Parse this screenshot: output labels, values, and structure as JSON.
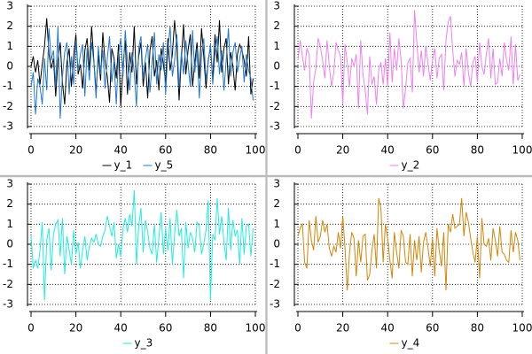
{
  "chart_data": [
    {
      "type": "line",
      "x": [
        0,
        1,
        2,
        3,
        4,
        5,
        6,
        7,
        8,
        9,
        10,
        11,
        12,
        13,
        14,
        15,
        16,
        17,
        18,
        19,
        20,
        21,
        22,
        23,
        24,
        25,
        26,
        27,
        28,
        29,
        30,
        31,
        32,
        33,
        34,
        35,
        36,
        37,
        38,
        39,
        40,
        41,
        42,
        43,
        44,
        45,
        46,
        47,
        48,
        49,
        50,
        51,
        52,
        53,
        54,
        55,
        56,
        57,
        58,
        59,
        60,
        61,
        62,
        63,
        64,
        65,
        66,
        67,
        68,
        69,
        70,
        71,
        72,
        73,
        74,
        75,
        76,
        77,
        78,
        79,
        80,
        81,
        82,
        83,
        84,
        85,
        86,
        87,
        88,
        89,
        90,
        91,
        92,
        93,
        94,
        95,
        96,
        97,
        98,
        99
      ],
      "xlim": [
        0,
        100
      ],
      "xticks": [
        0,
        20,
        40,
        60,
        80,
        100
      ],
      "ylim": [
        -3,
        3
      ],
      "yticks": [
        -3,
        -2,
        -1,
        0,
        1,
        2,
        3
      ],
      "grid": true,
      "series": [
        {
          "name": "y_1",
          "color": "#000000",
          "values": [
            0.0,
            0.5,
            -0.3,
            0.3,
            -0.9,
            0.1,
            1.0,
            2.4,
            0.6,
            -0.1,
            0.4,
            -1.5,
            0.3,
            1.2,
            -0.8,
            -1.9,
            0.2,
            0.9,
            -1.0,
            0.5,
            1.6,
            -0.4,
            0.1,
            -1.1,
            0.8,
            1.4,
            -0.2,
            2.0,
            0.3,
            -1.3,
            0.6,
            -0.7,
            1.7,
            0.2,
            -0.5,
            -1.8,
            0.9,
            0.4,
            -0.6,
            1.1,
            -2.0,
            0.0,
            1.3,
            -1.4,
            0.7,
            -0.3,
            2.0,
            -0.9,
            0.5,
            1.2,
            -1.0,
            0.2,
            -1.6,
            0.8,
            1.5,
            -0.5,
            0.3,
            -1.2,
            0.9,
            0.1,
            -0.8,
            1.4,
            -0.2,
            0.6,
            2.3,
            1.0,
            -1.7,
            0.4,
            2.1,
            -0.4,
            0.8,
            1.6,
            -1.0,
            0.2,
            1.2,
            -0.6,
            1.9,
            0.5,
            -1.1,
            0.3,
            1.0,
            -0.7,
            1.6,
            0.2,
            2.3,
            -0.3,
            0.9,
            1.4,
            -0.9,
            0.7,
            0.0,
            -1.2,
            0.6,
            1.1,
            0.8,
            0.3,
            -0.5,
            1.5,
            -1.4,
            -0.6
          ]
        },
        {
          "name": "y_5",
          "color": "#1f78d1",
          "values": [
            -1.0,
            -0.3,
            -2.4,
            -0.6,
            -1.0,
            -1.9,
            0.4,
            -1.2,
            1.9,
            0.3,
            0.8,
            -1.0,
            2.0,
            -2.6,
            -0.5,
            0.7,
            1.2,
            -1.4,
            0.5,
            -0.9,
            1.3,
            -0.2,
            0.6,
            1.1,
            -1.5,
            0.9,
            -0.7,
            1.2,
            0.2,
            -1.6,
            1.0,
            -0.4,
            0.8,
            -1.1,
            0.4,
            1.5,
            -0.8,
            0.3,
            -1.9,
            0.6,
            1.4,
            -0.5,
            1.8,
            0.2,
            -1.2,
            0.7,
            -0.3,
            -2.0,
            0.9,
            1.5,
            -0.6,
            0.4,
            1.1,
            -1.3,
            0.2,
            1.7,
            -0.9,
            0.6,
            -0.2,
            1.2,
            -1.4,
            0.8,
            2.0,
            -0.5,
            0.3,
            1.6,
            -1.1,
            0.7,
            -0.4,
            1.3,
            0.1,
            -1.0,
            1.8,
            -0.3,
            0.9,
            -1.6,
            0.5,
            1.4,
            -0.7,
            0.2,
            1.1,
            -0.9,
            0.6,
            1.5,
            -0.4,
            0.8,
            -1.2,
            0.3,
            1.9,
            -0.5,
            0.7,
            1.2,
            -0.3,
            0.4,
            1.0,
            -0.8,
            0.6,
            -0.2,
            -0.6,
            -1.7
          ]
        }
      ]
    },
    {
      "type": "line",
      "x": [
        0,
        1,
        2,
        3,
        4,
        5,
        6,
        7,
        8,
        9,
        10,
        11,
        12,
        13,
        14,
        15,
        16,
        17,
        18,
        19,
        20,
        21,
        22,
        23,
        24,
        25,
        26,
        27,
        28,
        29,
        30,
        31,
        32,
        33,
        34,
        35,
        36,
        37,
        38,
        39,
        40,
        41,
        42,
        43,
        44,
        45,
        46,
        47,
        48,
        49,
        50,
        51,
        52,
        53,
        54,
        55,
        56,
        57,
        58,
        59,
        60,
        61,
        62,
        63,
        64,
        65,
        66,
        67,
        68,
        69,
        70,
        71,
        72,
        73,
        74,
        75,
        76,
        77,
        78,
        79,
        80,
        81,
        82,
        83,
        84,
        85,
        86,
        87,
        88,
        89,
        90,
        91,
        92,
        93,
        94,
        95,
        96,
        97,
        98,
        99
      ],
      "xlim": [
        0,
        100
      ],
      "xticks": [
        0,
        20,
        40,
        60,
        80,
        100
      ],
      "ylim": [
        -3,
        3
      ],
      "yticks": [
        -3,
        -2,
        -1,
        0,
        1,
        2,
        3
      ],
      "grid": true,
      "series": [
        {
          "name": "y_2",
          "color": "#ee82ee",
          "values": [
            0.3,
            1.3,
            0.5,
            -0.2,
            0.9,
            0.6,
            -2.6,
            -0.8,
            -0.1,
            1.4,
            1.0,
            0.3,
            -0.6,
            1.3,
            0.0,
            -1.0,
            -0.3,
            1.2,
            0.8,
            0.5,
            -1.9,
            1.1,
            0.2,
            -1.0,
            0.4,
            0.0,
            0.6,
            -2.1,
            1.3,
            -0.4,
            -1.2,
            -2.4,
            0.5,
            -0.9,
            -0.5,
            -1.9,
            -0.2,
            0.2,
            -0.9,
            0.4,
            -1.0,
            1.7,
            -0.8,
            0.9,
            -0.2,
            1.4,
            0.3,
            -2.1,
            -1.1,
            0.2,
            0.4,
            -1.3,
            2.8,
            1.2,
            -0.3,
            0.8,
            -0.5,
            1.0,
            0.1,
            -0.7,
            0.3,
            0.9,
            -0.6,
            0.4,
            0.6,
            -1.2,
            1.3,
            2.2,
            2.5,
            0.8,
            -0.5,
            0.3,
            0.1,
            0.7,
            -1.0,
            0.9,
            -0.3,
            -1.0,
            0.2,
            0.5,
            -0.8,
            1.2,
            0.0,
            -0.4,
            0.6,
            1.4,
            -0.6,
            0.9,
            -0.9,
            -0.8,
            0.4,
            -0.5,
            1.2,
            0.3,
            -0.2,
            1.5,
            -0.9,
            1.1,
            -0.7,
            -0.4
          ]
        }
      ]
    },
    {
      "type": "line",
      "x": [
        0,
        1,
        2,
        3,
        4,
        5,
        6,
        7,
        8,
        9,
        10,
        11,
        12,
        13,
        14,
        15,
        16,
        17,
        18,
        19,
        20,
        21,
        22,
        23,
        24,
        25,
        26,
        27,
        28,
        29,
        30,
        31,
        32,
        33,
        34,
        35,
        36,
        37,
        38,
        39,
        40,
        41,
        42,
        43,
        44,
        45,
        46,
        47,
        48,
        49,
        50,
        51,
        52,
        53,
        54,
        55,
        56,
        57,
        58,
        59,
        60,
        61,
        62,
        63,
        64,
        65,
        66,
        67,
        68,
        69,
        70,
        71,
        72,
        73,
        74,
        75,
        76,
        77,
        78,
        79,
        80,
        81,
        82,
        83,
        84,
        85,
        86,
        87,
        88,
        89,
        90,
        91,
        92,
        93,
        94,
        95,
        96,
        97,
        98,
        99
      ],
      "xlim": [
        0,
        100
      ],
      "xticks": [
        0,
        20,
        40,
        60,
        80,
        100
      ],
      "ylim": [
        -3,
        3
      ],
      "yticks": [
        -3,
        -2,
        -1,
        0,
        1,
        2,
        3
      ],
      "grid": true,
      "series": [
        {
          "name": "y_3",
          "color": "#22eedd",
          "values": [
            0.4,
            -1.2,
            -0.8,
            -1.2,
            -0.3,
            1.1,
            -2.8,
            0.2,
            0.8,
            -1.3,
            0.5,
            1.0,
            1.2,
            -0.6,
            1.3,
            -1.5,
            0.4,
            -0.3,
            -1.0,
            0.7,
            -0.5,
            0.1,
            -1.2,
            -0.3,
            0.4,
            -0.8,
            -0.1,
            0.3,
            0.1,
            0.5,
            0.0,
            -0.1,
            0.4,
            0.7,
            1.4,
            0.9,
            0.4,
            1.1,
            -0.7,
            0.0,
            -0.6,
            0.8,
            1.3,
            0.6,
            1.5,
            0.9,
            2.7,
            -1.0,
            0.9,
            1.8,
            -0.4,
            1.2,
            0.6,
            -0.2,
            -0.5,
            1.0,
            -0.9,
            0.3,
            1.6,
            -0.5,
            0.8,
            -0.3,
            1.3,
            -1.0,
            0.5,
            1.7,
            0.4,
            0.8,
            -1.7,
            1.1,
            -0.2,
            0.6,
            0.3,
            -0.4,
            1.1,
            0.9,
            -0.5,
            0.0,
            0.7,
            2.2,
            -2.8,
            0.5,
            0.2,
            2.3,
            0.5,
            1.4,
            0.1,
            -0.8,
            1.8,
            -0.3,
            1.2,
            0.4,
            0.7,
            -1.0,
            1.3,
            -0.5,
            0.9,
            1.0,
            -0.6,
            0.8
          ]
        }
      ]
    },
    {
      "type": "line",
      "x": [
        0,
        1,
        2,
        3,
        4,
        5,
        6,
        7,
        8,
        9,
        10,
        11,
        12,
        13,
        14,
        15,
        16,
        17,
        18,
        19,
        20,
        21,
        22,
        23,
        24,
        25,
        26,
        27,
        28,
        29,
        30,
        31,
        32,
        33,
        34,
        35,
        36,
        37,
        38,
        39,
        40,
        41,
        42,
        43,
        44,
        45,
        46,
        47,
        48,
        49,
        50,
        51,
        52,
        53,
        54,
        55,
        56,
        57,
        58,
        59,
        60,
        61,
        62,
        63,
        64,
        65,
        66,
        67,
        68,
        69,
        70,
        71,
        72,
        73,
        74,
        75,
        76,
        77,
        78,
        79,
        80,
        81,
        82,
        83,
        84,
        85,
        86,
        87,
        88,
        89,
        90,
        91,
        92,
        93,
        94,
        95,
        96,
        97,
        98,
        99
      ],
      "xlim": [
        0,
        100
      ],
      "xticks": [
        0,
        20,
        40,
        60,
        80,
        100
      ],
      "ylim": [
        -3,
        3
      ],
      "yticks": [
        -3,
        -2,
        -1,
        0,
        1,
        2,
        3
      ],
      "grid": true,
      "series": [
        {
          "name": "y_4",
          "color": "#d4860b",
          "values": [
            0.4,
            0.8,
            1.0,
            -0.9,
            -1.2,
            1.2,
            0.2,
            -0.3,
            1.4,
            0.1,
            0.4,
            1.2,
            0.6,
            1.0,
            -0.2,
            -0.6,
            -0.1,
            -0.4,
            0.6,
            -0.2,
            1.4,
            -0.2,
            -2.3,
            -0.4,
            0.6,
            0.3,
            -1.6,
            0.2,
            -0.9,
            0.4,
            0.5,
            -1.8,
            -1.5,
            -0.3,
            0.5,
            -1.2,
            2.3,
            1.8,
            -0.9,
            1.0,
            0.3,
            -0.8,
            -1.7,
            0.6,
            -0.4,
            -1.2,
            0.7,
            0.4,
            -0.9,
            -1.0,
            0.5,
            -1.6,
            0.2,
            -0.8,
            0.4,
            -1.4,
            0.1,
            0.6,
            -0.2,
            -1.1,
            0.3,
            -1.6,
            0.8,
            -0.3,
            -1.1,
            0.6,
            -2.3,
            1.0,
            0.6,
            1.5,
            0.8,
            0.9,
            1.0,
            2.3,
            0.4,
            1.6,
            1.1,
            0.3,
            -0.4,
            -0.9,
            0.4,
            -1.7,
            1.3,
            0.0,
            -0.1,
            0.3,
            -0.8,
            0.8,
            0.2,
            -0.6,
            0.9,
            -0.4,
            -0.5,
            -0.8,
            -0.9,
            0.7,
            -0.4,
            0.6,
            0.2,
            -0.8
          ]
        }
      ]
    }
  ]
}
